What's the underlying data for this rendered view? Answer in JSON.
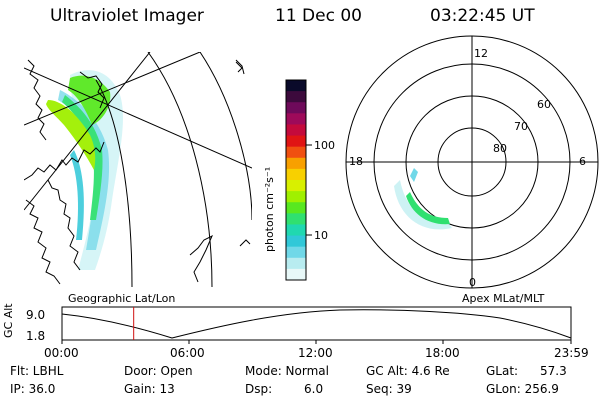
{
  "header": {
    "title": "Ultraviolet Imager",
    "date": "11 Dec 00",
    "time": "03:22:45 UT"
  },
  "colorbar": {
    "unit_label": "photon cm⁻²s⁻¹",
    "ticks": [
      "100",
      "10"
    ],
    "colors": [
      "#0a0a2a",
      "#3c0a3c",
      "#6e0a5a",
      "#9e0a5a",
      "#c40a3c",
      "#e01414",
      "#f05010",
      "#f8a000",
      "#f8d000",
      "#d8f000",
      "#a0f000",
      "#58e820",
      "#30e070",
      "#20d8b0",
      "#30c8d8",
      "#70d8e8",
      "#b8ecf0",
      "#e8f8f8"
    ]
  },
  "geo_panel": {
    "caption": "Geographic Lat/Lon"
  },
  "polar_panel": {
    "caption": "Apex MLat/MLT",
    "mlt_labels": {
      "top": "12",
      "left": "18",
      "right": "6",
      "bottom": "0"
    },
    "lat_labels": [
      "60",
      "70",
      "80"
    ]
  },
  "altitude_plot": {
    "ylabel": "GC Alt",
    "yticks": [
      "9.0",
      "1.8"
    ],
    "xticks": [
      "00:00",
      "06:00",
      "12:00",
      "18:00",
      "23:59"
    ],
    "current_time_hours": 3.38
  },
  "metadata": {
    "filter": "Flt: LBHL",
    "ip": "IP: 36.0",
    "door": "Door: Open",
    "gain": "Gain: 13",
    "mode": "Mode: Normal",
    "dsp": "Dsp:",
    "dsp_value": "6.0",
    "gc_alt": "GC Alt: 4.6 Re",
    "seq": "Seq: 39",
    "glat": "GLat:",
    "glat_value": "57.3",
    "glon": "GLon: 256.9"
  }
}
